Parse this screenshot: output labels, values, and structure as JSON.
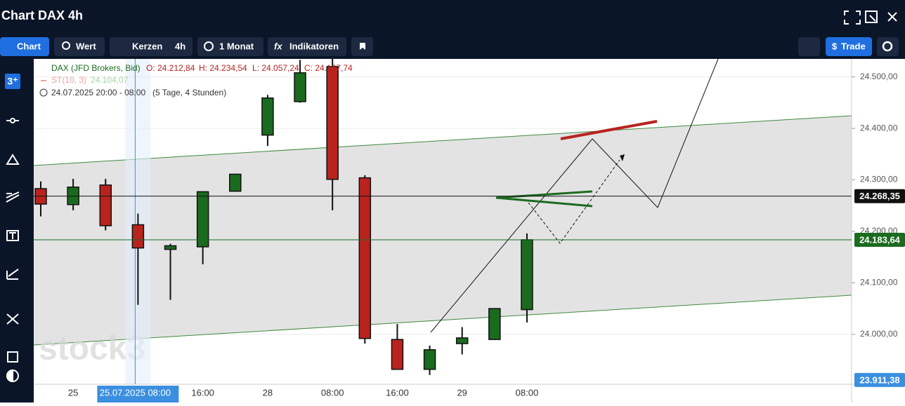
{
  "header": {
    "title": "Chart DAX 4h"
  },
  "toolbar": {
    "chart": "Chart",
    "wert": "Wert",
    "kerzen": "Kerzen",
    "interval": "4h",
    "range": "1 Monat",
    "indicators": "Indikatoren",
    "trade": "Trade"
  },
  "sidebar": {
    "badge": "3⁺"
  },
  "legend": {
    "instrument": "DAX (JFD Brokers, Bid)",
    "open": "O: 24.212,84",
    "high": "H: 24.234,54",
    "low": "L: 24.057,24",
    "close": "C: 24.167,74",
    "indicator": "ST(10, 3)",
    "indicator_value": "24.104,07",
    "period": "24.07.2025 20:00 - 08:00",
    "duration": "(5 Tage, 4 Stunden)"
  },
  "watermark": "stock3",
  "chart_data": {
    "type": "candlestick",
    "categories": [
      null,
      "25",
      null,
      "25.07.2025 08:00",
      null,
      "16:00",
      null,
      "28",
      null,
      "08:00",
      null,
      "16:00",
      null,
      "29",
      null,
      "08:00"
    ],
    "open": [
      24283,
      24252,
      24290,
      24212.84,
      24165,
      24170,
      24278,
      24387,
      24452,
      24520,
      24304,
      23990,
      23932,
      23982,
      23990,
      24048
    ],
    "high": [
      24297,
      24302,
      24302,
      24234.54,
      24176,
      24277,
      24312,
      24465,
      24533,
      24535,
      24309,
      24020,
      23978,
      24014,
      24050,
      24196
    ],
    "low": [
      24229,
      24241,
      24202,
      24057.24,
      24067,
      24136,
      24277,
      24366,
      24450,
      24241,
      23982,
      23932,
      23921,
      23961,
      23989,
      24023
    ],
    "close": [
      24253,
      24286,
      24211,
      24167.74,
      24172,
      24277,
      24311,
      24459,
      24508,
      24301,
      23992,
      23932,
      23970,
      23993,
      24050,
      24183.64
    ],
    "crosshair_index": 3,
    "up_color": "#1b6b1f",
    "down_color": "#b9231e",
    "ylim": [
      23903,
      24535
    ],
    "yticks": [
      {
        "value": 24000,
        "label": "24.000,00"
      },
      {
        "value": 24100,
        "label": "24.100,00"
      },
      {
        "value": 24200,
        "label": "24.200,00"
      },
      {
        "value": 24300,
        "label": "24.300,00"
      },
      {
        "value": 24400,
        "label": "24.400,00"
      },
      {
        "value": 24500,
        "label": "24.500,00"
      }
    ],
    "grid": true,
    "price_lines": [
      {
        "value": 24268.35,
        "label": "24.268,35",
        "color": "#111111"
      },
      {
        "value": 24183.64,
        "label": "24.183,64",
        "color": "#1b6b1f"
      },
      {
        "value": 23911.38,
        "label": "23.911,38",
        "color": "#3b8fe0"
      }
    ]
  }
}
